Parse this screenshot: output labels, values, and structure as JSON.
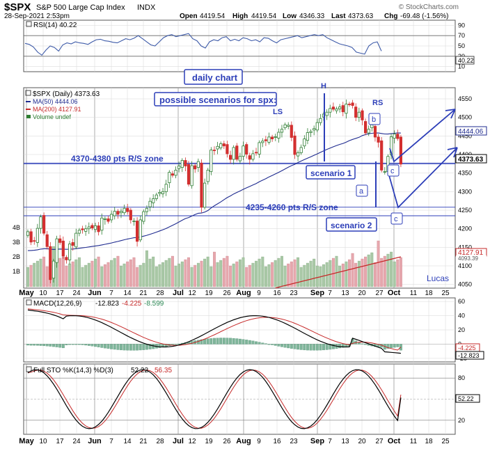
{
  "header": {
    "symbol": "$SPX",
    "name": "S&P 500 Large Cap Index",
    "exchange": "INDX",
    "date": "28-Sep-2021 2:53pm",
    "open_label": "Open",
    "open": "4419.54",
    "high_label": "High",
    "high": "4419.54",
    "low_label": "Low",
    "low": "4346.33",
    "last_label": "Last",
    "last": "4373.63",
    "chg_label": "Chg",
    "chg": "-69.48 (-1.56%)",
    "brand": "© StockCharts.com"
  },
  "rsi_panel": {
    "legend": "RSI(14) 40.22",
    "ticks": [
      "90",
      "70",
      "50",
      "30",
      "10"
    ],
    "last_label": "40.22"
  },
  "price_panel": {
    "legend_title": "$SPX (Daily) 4373.63",
    "legend_ma50": "MA(50) 4444.06",
    "legend_ma200": "MA(200) 4127.91",
    "legend_volume": "Volume undef",
    "price_ticks": [
      "4550",
      "4500",
      "4450",
      "4400",
      "4350",
      "4300",
      "4250",
      "4200",
      "4150",
      "4100",
      "4050"
    ],
    "volume_ticks": [
      "4B",
      "3B",
      "2B",
      "1B"
    ],
    "last_ma50": "4444.06",
    "last_price": "4373.63",
    "last_ma200": "4127.91",
    "last_ma200_b": "4093.39"
  },
  "annotations": {
    "daily_chart": "daily chart",
    "scenarios_title": "possible scenarios for spx:",
    "zone_upper": "4370-4380 pts R/S zone",
    "zone_lower": "4235-4260 pts R/S zone",
    "scenario1": "scenario 1",
    "scenario2": "scenario 2",
    "H": "H",
    "LS": "LS",
    "RS": "RS",
    "a": "a",
    "b": "b",
    "c1": "c",
    "c2": "c",
    "author": "Lucas"
  },
  "x_axis": [
    "May",
    "10",
    "17",
    "24",
    "Jun",
    "7",
    "14",
    "21",
    "28",
    "Jul",
    "12",
    "19",
    "26",
    "Aug",
    "9",
    "16",
    "23",
    "Sep",
    "7",
    "13",
    "20",
    "27",
    "Oct",
    "11",
    "18",
    "25"
  ],
  "macd_panel": {
    "legend_name": "MACD(12,26,9)",
    "legend_macd": "-12.823",
    "legend_signal": "-4.225",
    "legend_hist": "-8.599",
    "ticks": [
      "60",
      "40",
      "20",
      "0",
      "-20"
    ],
    "last_signal": "-4.225",
    "last_macd": "-12.823"
  },
  "sto_panel": {
    "legend_name": "Full STO %K(14,3) %D(3)",
    "legend_k": "52.22",
    "legend_d": "56.35",
    "ticks": [
      "80",
      "50",
      "20"
    ],
    "last_label": "52.22"
  },
  "colors": {
    "up": "#2e7d32",
    "down": "#d32f2f",
    "ma50": "#1e2a8f",
    "ma200": "#c62828",
    "annotation": "#2c3eb8",
    "grid": "#d6d6d6",
    "vol_up": "#a9c8a6",
    "vol_down": "#e6a7ad"
  },
  "chart_data": [
    {
      "type": "line",
      "title": "RSI(14)",
      "ylim": [
        0,
        100
      ],
      "x_start": "2021-05-03",
      "values": [
        55,
        53,
        48,
        38,
        32,
        42,
        50,
        47,
        40,
        52,
        56,
        54,
        58,
        56,
        55,
        53,
        58,
        62,
        63,
        60,
        59,
        57,
        56,
        60,
        64,
        62,
        65,
        70,
        64,
        58,
        52,
        50,
        58,
        66,
        70,
        72,
        68,
        70,
        72,
        74,
        64,
        60,
        50,
        46,
        58,
        62,
        60,
        66,
        68,
        60,
        63,
        60,
        66,
        64,
        60,
        62,
        58,
        66,
        65,
        60,
        56,
        62,
        64,
        66,
        68,
        70,
        66,
        68,
        70,
        72,
        70,
        72,
        66,
        62,
        58,
        54,
        52,
        50,
        47,
        38,
        36,
        34,
        50,
        56,
        58,
        40
      ]
    },
    {
      "type": "candlestick",
      "title": "$SPX (Daily) 4373.63",
      "ylim": [
        4040,
        4580
      ],
      "x_start": "2021-05-03",
      "close": [
        4192,
        4164,
        4167,
        4201,
        4232,
        4188,
        4152,
        4063,
        4113,
        4173,
        4163,
        4127,
        4116,
        4159,
        4155,
        4188,
        4196,
        4197,
        4200,
        4205,
        4202,
        4208,
        4192,
        4229,
        4227,
        4220,
        4239,
        4247,
        4239,
        4247,
        4255,
        4246,
        4224,
        4221,
        4166,
        4224,
        4246,
        4255,
        4274,
        4281,
        4291,
        4298,
        4300,
        4320,
        4352,
        4344,
        4358,
        4369,
        4384,
        4369,
        4320,
        4370,
        4361,
        4381,
        4258,
        4323,
        4358,
        4412,
        4411,
        4422,
        4429,
        4423,
        4402,
        4387,
        4419,
        4387,
        4395,
        4423,
        4401,
        4387,
        4402,
        4405,
        4432,
        4436,
        4437,
        4447,
        4442,
        4448,
        4460,
        4468,
        4480,
        4479,
        4446,
        4400,
        4405,
        4419,
        4442,
        4459,
        4462,
        4470,
        4486,
        4497,
        4509,
        4514,
        4524,
        4522,
        4523,
        4528,
        4515,
        4536,
        4535,
        4532,
        4500,
        4514,
        4493,
        4458,
        4468,
        4480,
        4447,
        4433,
        4358,
        4354,
        4395,
        4448,
        4455,
        4443,
        4374
      ],
      "hlines": [
        4375,
        4377,
        4258,
        4235
      ]
    },
    {
      "type": "line",
      "title": "MACD(12,26,9)",
      "ylim": [
        -25,
        65
      ],
      "series": [
        {
          "name": "MACD",
          "last": -12.823
        },
        {
          "name": "Signal",
          "last": -4.225
        },
        {
          "name": "Histogram",
          "last": -8.599
        }
      ]
    },
    {
      "type": "line",
      "title": "Full STO %K(14,3) %D(3)",
      "ylim": [
        0,
        100
      ],
      "series": [
        {
          "name": "%K",
          "last": 52.22
        },
        {
          "name": "%D",
          "last": 56.35
        }
      ]
    }
  ]
}
